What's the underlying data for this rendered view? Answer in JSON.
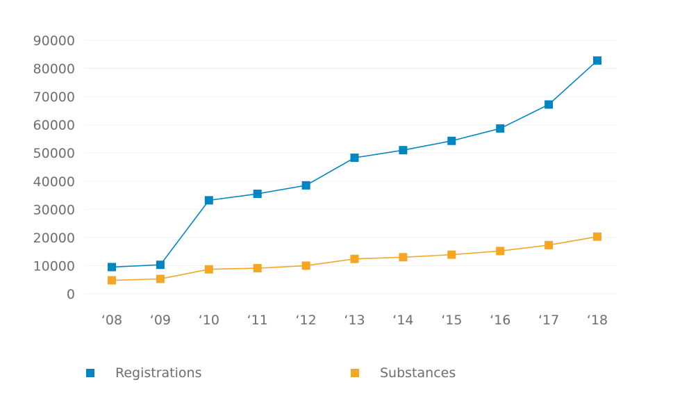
{
  "colors": {
    "registrations": "#0085c3",
    "substances": "#f5a623",
    "tick_text": "#6e6e6e",
    "grid": "#f2f2f2"
  },
  "legend": {
    "registrations_label": "Registrations",
    "substances_label": "Substances"
  },
  "chart_data": {
    "type": "line",
    "categories": [
      "‘08",
      "‘09",
      "‘10",
      "‘11",
      "‘12",
      "‘13",
      "‘14",
      "‘15",
      "‘16",
      "‘17",
      "‘18"
    ],
    "y_ticks": [
      "0",
      "10000",
      "20000",
      "30000",
      "40000",
      "50000",
      "60000",
      "70000",
      "80000",
      "90000"
    ],
    "ylim": [
      0,
      90000
    ],
    "grid": true,
    "legend_position": "bottom",
    "title": "",
    "xlabel": "",
    "ylabel": "",
    "series": [
      {
        "name": "Registrations",
        "color": "#0085c3",
        "values": [
          9500,
          10300,
          33200,
          35500,
          38500,
          48300,
          51000,
          54300,
          58700,
          67200,
          82800
        ]
      },
      {
        "name": "Substances",
        "color": "#f5a623",
        "values": [
          4800,
          5300,
          8700,
          9100,
          10000,
          12400,
          13000,
          13900,
          15200,
          17300,
          20300
        ]
      }
    ]
  }
}
